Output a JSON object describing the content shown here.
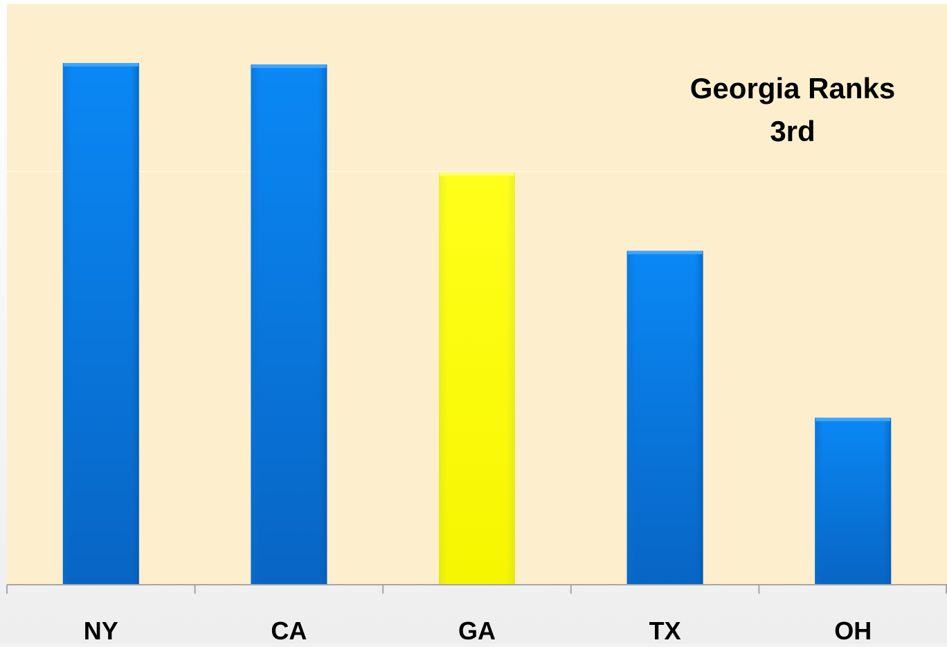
{
  "chart_data": {
    "type": "bar",
    "categories": [
      "NY",
      "CA",
      "GA",
      "TX",
      "OH"
    ],
    "values": [
      100,
      99.7,
      79,
      64,
      32
    ],
    "ylim": [
      0,
      100
    ],
    "title": "",
    "xlabel": "",
    "ylabel": "",
    "annotation": {
      "line1": "Georgia Ranks",
      "line2": "3rd"
    },
    "grid": true,
    "legend": "none",
    "colors": {
      "plot_background": "#fdefcd",
      "page_background": "#f2f2f2",
      "bar": "#0a7ee6",
      "bar_highlight": "#ffff00",
      "axis": "#a6a6a6",
      "gridline": "#fff7df",
      "text": "#000000"
    },
    "highlight_category": "GA"
  }
}
